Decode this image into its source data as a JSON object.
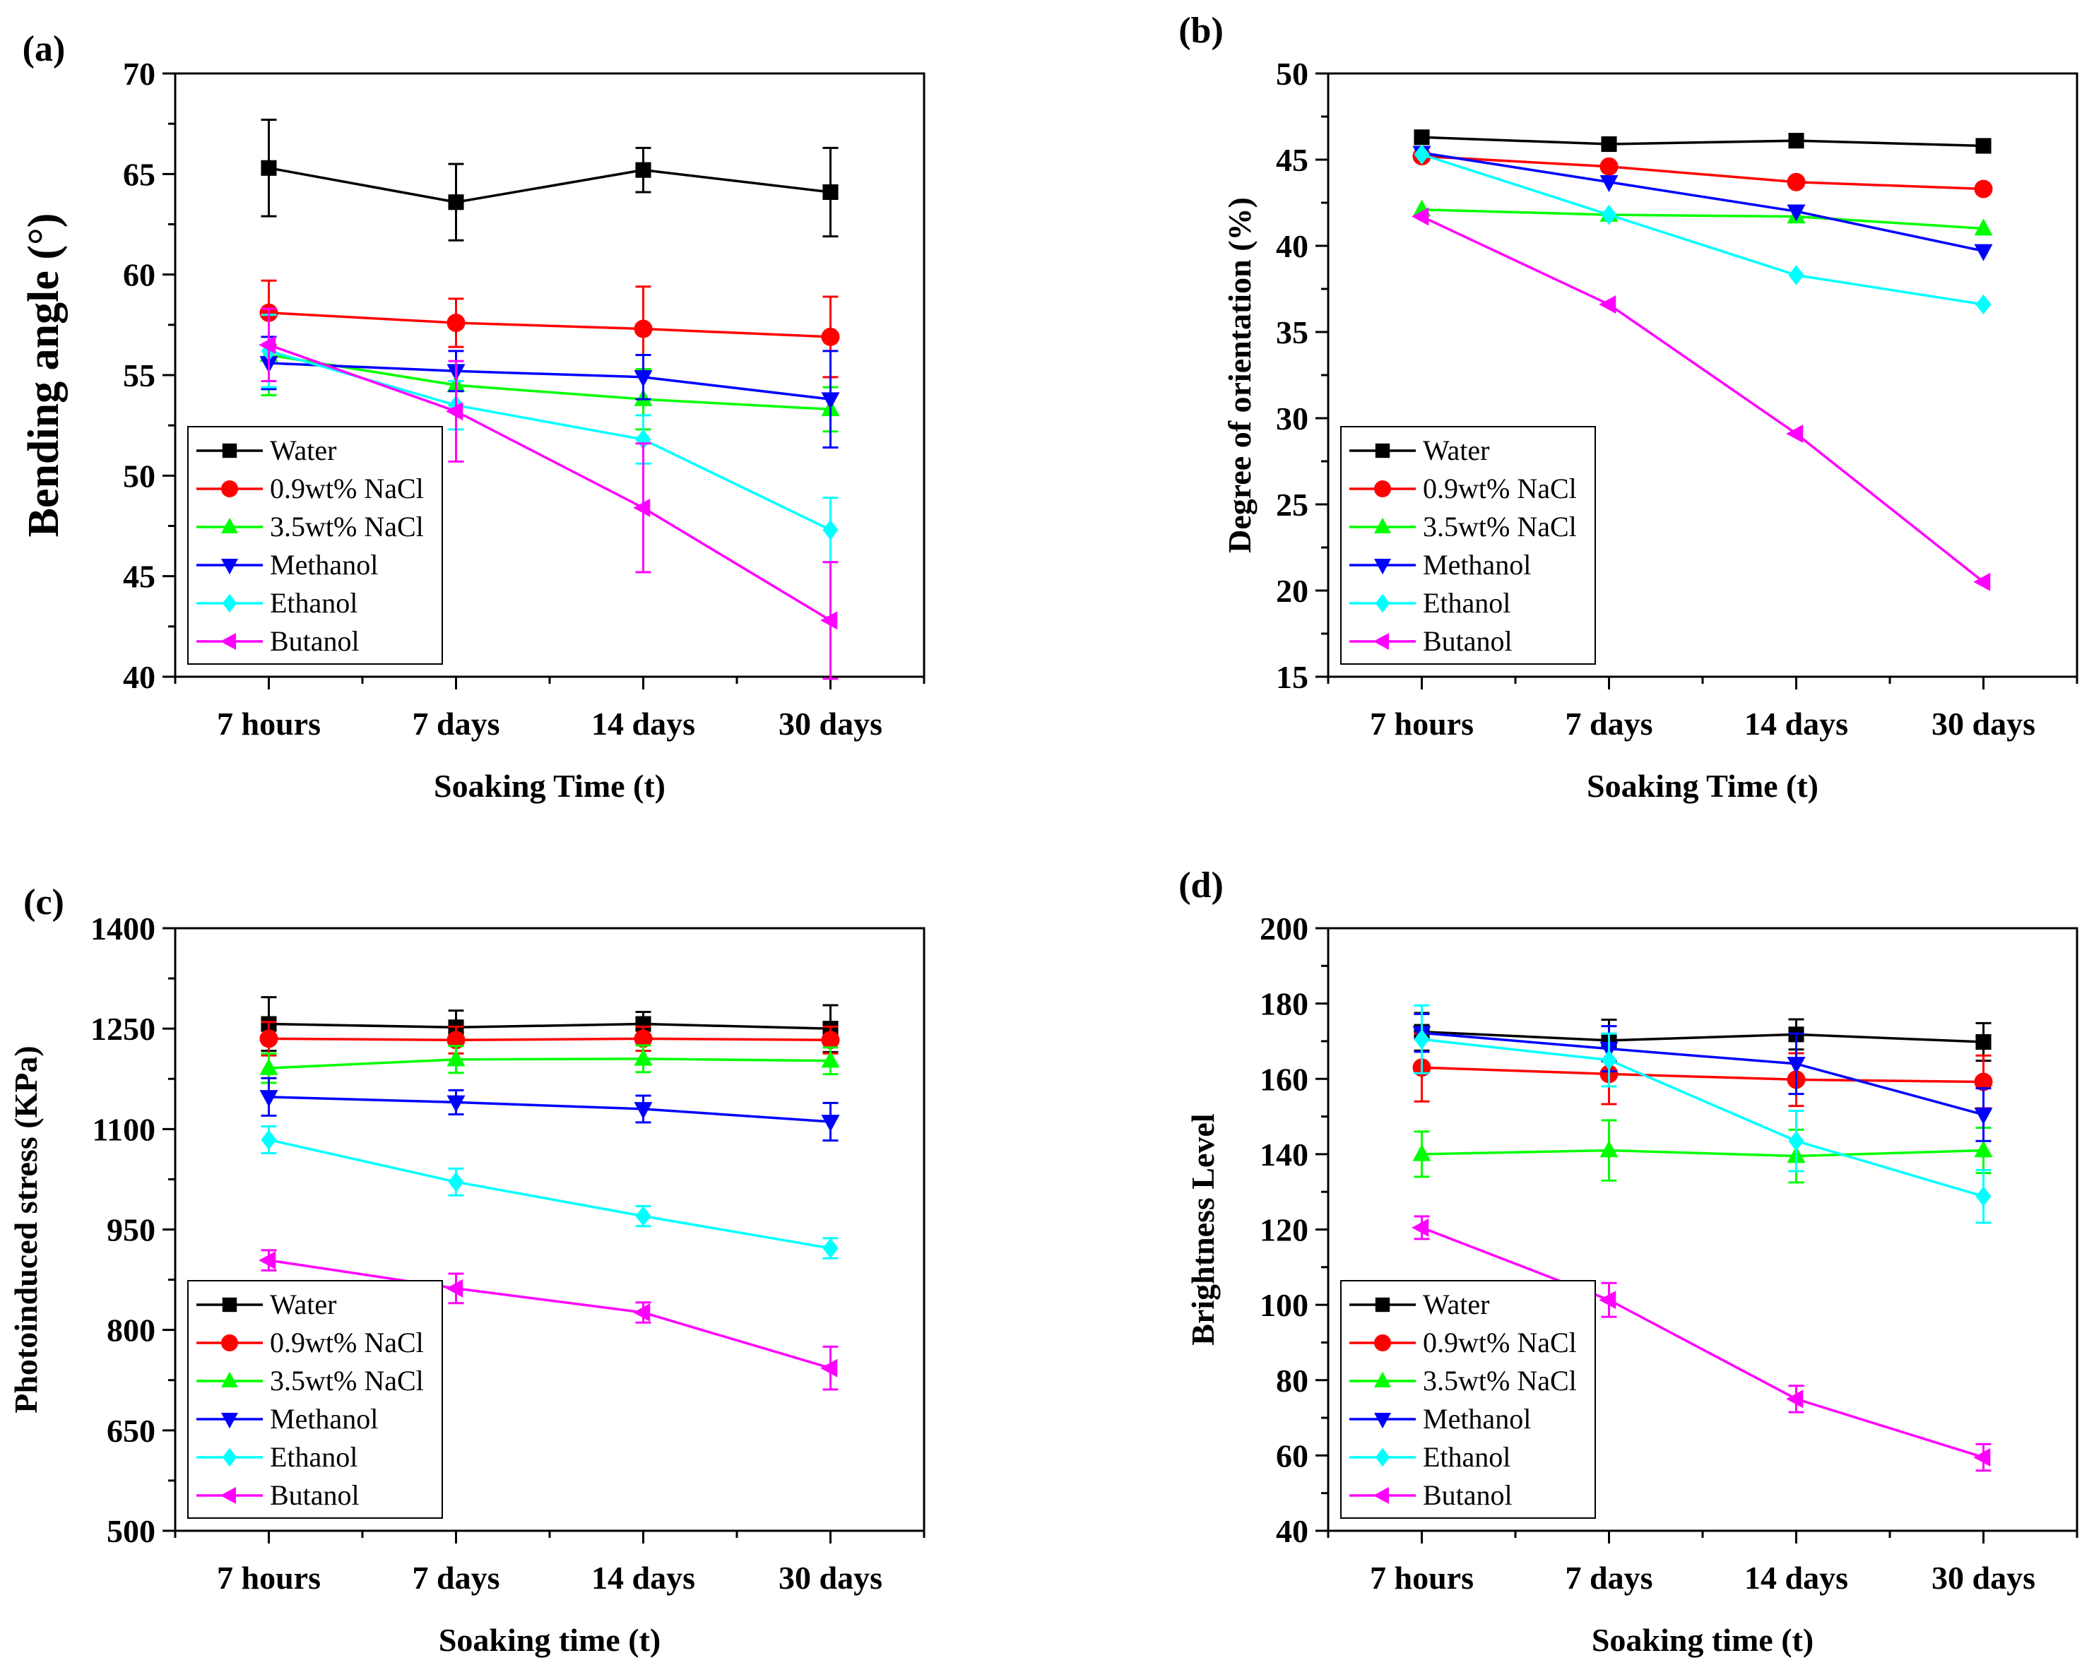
{
  "colors": {
    "Water": "#000000",
    "0.9wt% NaCl": "#ff0000",
    "3.5wt% NaCl": "#00ff00",
    "Methanol": "#0000ff",
    "Ethanol": "#00ffff",
    "Butanol": "#ff00ff"
  },
  "markers": {
    "Water": "square-icon",
    "0.9wt% NaCl": "circle-icon",
    "3.5wt% NaCl": "triangle-up-icon",
    "Methanol": "triangle-down-icon",
    "Ethanol": "diamond-icon",
    "Butanol": "triangle-left-icon"
  },
  "chart_data": [
    {
      "panel": "(a)",
      "type": "line",
      "title": "",
      "xlabel": "Soaking Time (t)",
      "ylabel": "Bending angle (°)",
      "categories": [
        "7 hours",
        "7 days",
        "14 days",
        "30 days"
      ],
      "ylim": [
        40,
        70
      ],
      "yticks": [
        40,
        45,
        50,
        55,
        60,
        65,
        70
      ],
      "legend": "bottom-left",
      "series": [
        {
          "name": "Water",
          "values": [
            65.3,
            63.6,
            65.2,
            64.1
          ],
          "errors": [
            2.4,
            1.9,
            1.1,
            2.2
          ]
        },
        {
          "name": "0.9wt% NaCl",
          "values": [
            58.1,
            57.6,
            57.3,
            56.9
          ],
          "errors": [
            1.6,
            1.2,
            2.1,
            2.0
          ]
        },
        {
          "name": "3.5wt% NaCl",
          "values": [
            56.0,
            54.5,
            53.8,
            53.3
          ],
          "errors": [
            2.0,
            1.0,
            1.5,
            1.1
          ]
        },
        {
          "name": "Methanol",
          "values": [
            55.6,
            55.2,
            54.9,
            53.8
          ],
          "errors": [
            1.3,
            1.0,
            1.1,
            2.4
          ]
        },
        {
          "name": "Ethanol",
          "values": [
            56.2,
            53.5,
            51.8,
            47.3
          ],
          "errors": [
            1.8,
            1.2,
            1.2,
            1.6
          ]
        },
        {
          "name": "Butanol",
          "values": [
            56.5,
            53.2,
            48.4,
            42.8
          ],
          "errors": [
            1.8,
            2.5,
            3.2,
            2.9
          ]
        }
      ]
    },
    {
      "panel": "(b)",
      "type": "line",
      "title": "",
      "xlabel": "Soaking Time (t)",
      "ylabel": "Degree of orientation (%)",
      "categories": [
        "7 hours",
        "7 days",
        "14 days",
        "30 days"
      ],
      "ylim": [
        15,
        50
      ],
      "yticks": [
        15,
        20,
        25,
        30,
        35,
        40,
        45,
        50
      ],
      "legend": "bottom-left",
      "series": [
        {
          "name": "Water",
          "values": [
            46.3,
            45.9,
            46.1,
            45.8
          ],
          "errors": [
            0,
            0,
            0,
            0
          ]
        },
        {
          "name": "0.9wt% NaCl",
          "values": [
            45.2,
            44.6,
            43.7,
            43.3
          ],
          "errors": [
            0,
            0,
            0,
            0
          ]
        },
        {
          "name": "3.5wt% NaCl",
          "values": [
            42.1,
            41.8,
            41.7,
            41.0
          ],
          "errors": [
            0,
            0,
            0,
            0
          ]
        },
        {
          "name": "Methanol",
          "values": [
            45.4,
            43.7,
            42.0,
            39.7
          ],
          "errors": [
            0,
            0,
            0,
            0
          ]
        },
        {
          "name": "Ethanol",
          "values": [
            45.3,
            41.8,
            38.3,
            36.6
          ],
          "errors": [
            0,
            0,
            0,
            0
          ]
        },
        {
          "name": "Butanol",
          "values": [
            41.7,
            36.6,
            29.1,
            20.5
          ],
          "errors": [
            0,
            0,
            0,
            0
          ]
        }
      ]
    },
    {
      "panel": "(c)",
      "type": "line",
      "title": "",
      "xlabel": "Soaking time (t)",
      "ylabel": "Photoinduced stress (KPa)",
      "categories": [
        "7 hours",
        "7 days",
        "14 days",
        "30 days"
      ],
      "ylim": [
        500,
        1400
      ],
      "yticks": [
        500,
        650,
        800,
        950,
        1100,
        1250,
        1400
      ],
      "legend": "bottom-left",
      "series": [
        {
          "name": "Water",
          "values": [
            1257,
            1252,
            1257,
            1250
          ],
          "errors": [
            40,
            25,
            18,
            35
          ]
        },
        {
          "name": "0.9wt% NaCl",
          "values": [
            1235,
            1233,
            1235,
            1233
          ],
          "errors": [
            25,
            20,
            18,
            20
          ]
        },
        {
          "name": "3.5wt% NaCl",
          "values": [
            1191,
            1204,
            1205,
            1202
          ],
          "errors": [
            22,
            20,
            20,
            20
          ]
        },
        {
          "name": "Methanol",
          "values": [
            1148,
            1140,
            1130,
            1111
          ],
          "errors": [
            28,
            18,
            20,
            28
          ]
        },
        {
          "name": "Ethanol",
          "values": [
            1084,
            1021,
            970,
            922
          ],
          "errors": [
            20,
            20,
            15,
            15
          ]
        },
        {
          "name": "Butanol",
          "values": [
            904,
            862,
            826,
            743
          ],
          "errors": [
            15,
            22,
            15,
            32
          ]
        }
      ]
    },
    {
      "panel": "(d)",
      "type": "line",
      "title": "",
      "xlabel": "Soaking time (t)",
      "ylabel": "Brightness Level",
      "categories": [
        "7 hours",
        "7 days",
        "14 days",
        "30 days"
      ],
      "ylim": [
        40,
        200
      ],
      "yticks": [
        40,
        60,
        80,
        100,
        120,
        140,
        160,
        180,
        200
      ],
      "legend": "bottom-left",
      "series": [
        {
          "name": "Water",
          "values": [
            172.5,
            170.2,
            171.8,
            169.8
          ],
          "errors": [
            5,
            5.5,
            4,
            5
          ]
        },
        {
          "name": "0.9wt% NaCl",
          "values": [
            163.0,
            161.3,
            159.8,
            159.2
          ],
          "errors": [
            9,
            8,
            7,
            7
          ]
        },
        {
          "name": "3.5wt% NaCl",
          "values": [
            140.0,
            141.0,
            139.5,
            141.0
          ],
          "errors": [
            6,
            8,
            7,
            6
          ]
        },
        {
          "name": "Methanol",
          "values": [
            172.2,
            168.0,
            164.0,
            150.5
          ],
          "errors": [
            5,
            6,
            8,
            7
          ]
        },
        {
          "name": "Ethanol",
          "values": [
            170.5,
            165.0,
            143.5,
            128.8
          ],
          "errors": [
            9,
            7,
            8,
            7
          ]
        },
        {
          "name": "Butanol",
          "values": [
            120.5,
            101.3,
            75.0,
            59.5
          ],
          "errors": [
            3,
            4.5,
            3.5,
            3.5
          ]
        }
      ]
    }
  ]
}
